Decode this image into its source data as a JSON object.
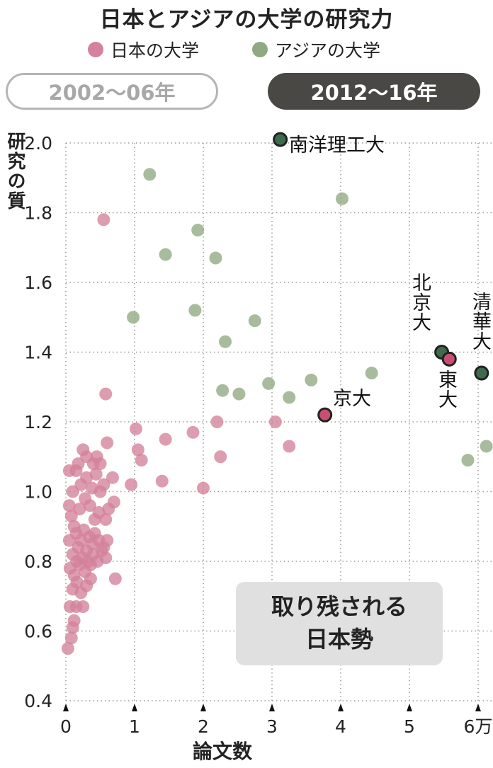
{
  "title": "日本とアジアの大学の研究力",
  "legend": {
    "japan": {
      "label": "日本の大学",
      "color": "#d4829b"
    },
    "asia": {
      "label": "アジアの大学",
      "color": "#8fa982"
    }
  },
  "periods": {
    "inactive": "2002～06年",
    "active": "2012～16年"
  },
  "callout": {
    "line1": "取り残される",
    "line2": "日本勢"
  },
  "colors": {
    "highlight_japan": "#c94f72",
    "highlight_asia": "#3f6b4d",
    "highlight_stroke": "#222222",
    "grid": "#9a9a9a"
  },
  "chart_data": {
    "type": "scatter",
    "xlabel": "論文数",
    "ylabel": "研究の質",
    "xlim": [
      0,
      6
    ],
    "ylim": [
      0.4,
      2.0
    ],
    "x_ticks": [
      {
        "value": 0,
        "label": "0"
      },
      {
        "value": 1,
        "label": "1"
      },
      {
        "value": 2,
        "label": "2"
      },
      {
        "value": 3,
        "label": "3"
      },
      {
        "value": 4,
        "label": "4"
      },
      {
        "value": 5,
        "label": "5"
      },
      {
        "value": 6,
        "label": "6万"
      }
    ],
    "y_ticks": [
      {
        "value": 0.4,
        "label": "0.4"
      },
      {
        "value": 0.6,
        "label": "0.6"
      },
      {
        "value": 0.8,
        "label": "0.8"
      },
      {
        "value": 1.0,
        "label": "1.0"
      },
      {
        "value": 1.2,
        "label": "1.2"
      },
      {
        "value": 1.4,
        "label": "1.4"
      },
      {
        "value": 1.6,
        "label": "1.6"
      },
      {
        "value": 1.8,
        "label": "1.8"
      },
      {
        "value": 2.0,
        "label": "2.0"
      }
    ],
    "grid": true,
    "legend_position": "top",
    "series": [
      {
        "name": "日本の大学",
        "points": [
          [
            0.55,
            1.78
          ],
          [
            0.58,
            1.28
          ],
          [
            0.6,
            1.14
          ],
          [
            1.02,
            1.18
          ],
          [
            1.05,
            1.12
          ],
          [
            1.1,
            1.09
          ],
          [
            0.95,
            1.02
          ],
          [
            1.45,
            1.15
          ],
          [
            1.4,
            1.03
          ],
          [
            1.85,
            1.17
          ],
          [
            2.0,
            1.01
          ],
          [
            2.2,
            1.2
          ],
          [
            2.25,
            1.1
          ],
          [
            3.05,
            1.2
          ],
          [
            3.25,
            1.13
          ],
          [
            0.68,
            1.04
          ],
          [
            0.7,
            0.97
          ],
          [
            0.72,
            0.75
          ],
          [
            0.05,
            1.06
          ],
          [
            0.1,
            1.0
          ],
          [
            0.15,
            1.06
          ],
          [
            0.25,
            1.12
          ],
          [
            0.3,
            1.1
          ],
          [
            0.4,
            1.08
          ],
          [
            0.45,
            1.1
          ],
          [
            0.5,
            1.0
          ],
          [
            0.55,
            1.02
          ],
          [
            0.05,
            0.96
          ],
          [
            0.08,
            0.93
          ],
          [
            0.12,
            0.9
          ],
          [
            0.2,
            0.95
          ],
          [
            0.28,
            0.98
          ],
          [
            0.35,
            0.96
          ],
          [
            0.42,
            0.92
          ],
          [
            0.48,
            0.94
          ],
          [
            0.58,
            0.92
          ],
          [
            0.62,
            0.95
          ],
          [
            0.05,
            0.86
          ],
          [
            0.1,
            0.82
          ],
          [
            0.15,
            0.88
          ],
          [
            0.18,
            0.84
          ],
          [
            0.22,
            0.86
          ],
          [
            0.26,
            0.89
          ],
          [
            0.3,
            0.83
          ],
          [
            0.34,
            0.87
          ],
          [
            0.38,
            0.85
          ],
          [
            0.42,
            0.88
          ],
          [
            0.48,
            0.86
          ],
          [
            0.55,
            0.84
          ],
          [
            0.6,
            0.86
          ],
          [
            0.06,
            0.78
          ],
          [
            0.12,
            0.76
          ],
          [
            0.16,
            0.8
          ],
          [
            0.2,
            0.79
          ],
          [
            0.24,
            0.81
          ],
          [
            0.28,
            0.77
          ],
          [
            0.32,
            0.8
          ],
          [
            0.36,
            0.79
          ],
          [
            0.4,
            0.82
          ],
          [
            0.46,
            0.8
          ],
          [
            0.52,
            0.83
          ],
          [
            0.58,
            0.81
          ],
          [
            0.1,
            0.72
          ],
          [
            0.16,
            0.74
          ],
          [
            0.22,
            0.71
          ],
          [
            0.3,
            0.73
          ],
          [
            0.36,
            0.75
          ],
          [
            0.15,
            0.67
          ],
          [
            0.25,
            0.67
          ],
          [
            0.06,
            0.67
          ],
          [
            0.1,
            0.61
          ],
          [
            0.08,
            0.58
          ],
          [
            0.12,
            0.63
          ],
          [
            0.03,
            0.55
          ],
          [
            0.3,
            1.04
          ],
          [
            0.38,
            1.01
          ],
          [
            0.44,
            1.05
          ],
          [
            0.22,
            1.02
          ],
          [
            0.18,
            1.08
          ],
          [
            0.5,
            1.08
          ]
        ]
      },
      {
        "name": "アジアの大学",
        "points": [
          [
            1.22,
            1.91
          ],
          [
            0.98,
            1.5
          ],
          [
            1.45,
            1.68
          ],
          [
            1.88,
            1.52
          ],
          [
            1.92,
            1.75
          ],
          [
            2.18,
            1.67
          ],
          [
            2.32,
            1.43
          ],
          [
            2.28,
            1.29
          ],
          [
            2.52,
            1.28
          ],
          [
            2.75,
            1.49
          ],
          [
            2.95,
            1.31
          ],
          [
            3.25,
            1.27
          ],
          [
            3.57,
            1.32
          ],
          [
            4.02,
            1.84
          ],
          [
            4.45,
            1.34
          ],
          [
            5.85,
            1.09
          ],
          [
            6.12,
            1.13
          ]
        ]
      }
    ],
    "highlighted": [
      {
        "label": "南洋理工大",
        "x": 3.12,
        "y": 2.01,
        "group": "asia"
      },
      {
        "label": "北京大",
        "x": 5.47,
        "y": 1.4,
        "group": "asia"
      },
      {
        "label": "清華大",
        "x": 6.05,
        "y": 1.34,
        "group": "asia"
      },
      {
        "label": "東大",
        "x": 5.58,
        "y": 1.38,
        "group": "japan"
      },
      {
        "label": "京大",
        "x": 3.77,
        "y": 1.22,
        "group": "japan"
      }
    ]
  }
}
